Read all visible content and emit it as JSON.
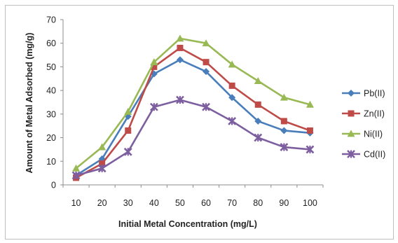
{
  "chart_data": {
    "type": "line",
    "title": "",
    "xlabel": "Initial Metal Concentration  (mg/L)",
    "ylabel": "Amount of Metal Adsorbed  (mg/g)",
    "categories": [
      "10",
      "20",
      "30",
      "40",
      "50",
      "60",
      "70",
      "80",
      "90",
      "100"
    ],
    "yticks": [
      "0",
      "10",
      "20",
      "30",
      "40",
      "50",
      "60",
      "70"
    ],
    "ylim": [
      0,
      70
    ],
    "grid": false,
    "legend_position": "right",
    "series": [
      {
        "name": "Pb(II)",
        "color": "#4a7ebb",
        "marker": "diamond",
        "values": [
          4,
          11,
          29,
          47,
          53,
          48,
          37,
          27,
          23,
          22
        ]
      },
      {
        "name": "Zn(II)",
        "color": "#be4b48",
        "marker": "square",
        "values": [
          3,
          9,
          23,
          50,
          58,
          52,
          42,
          34,
          27,
          23
        ]
      },
      {
        "name": "Ni(II)",
        "color": "#98b954",
        "marker": "triangle",
        "values": [
          7,
          16,
          31,
          52,
          62,
          60,
          51,
          44,
          37,
          34
        ]
      },
      {
        "name": "Cd(II)",
        "color": "#7d5fa0",
        "marker": "star",
        "values": [
          4,
          7,
          14,
          33,
          36,
          33,
          27,
          20,
          16,
          15
        ]
      }
    ]
  }
}
